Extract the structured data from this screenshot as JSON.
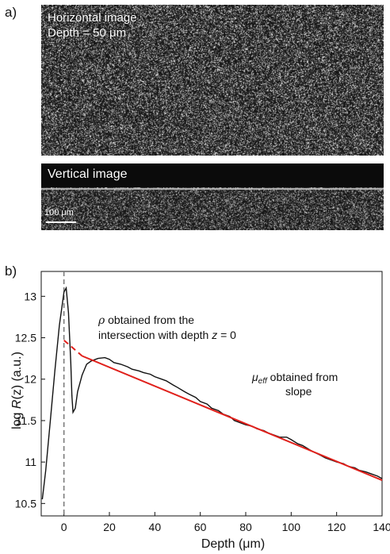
{
  "panel_a": {
    "label": "a)",
    "horizontal_title": "Horizontal image",
    "horizontal_depth": "Depth = 50 μm",
    "vertical_title": "Vertical image",
    "scale_bar_label": "100 μm"
  },
  "panel_b": {
    "label": "b)",
    "annotation_rho": [
      "ρ obtained from the",
      "intersection with depth z = 0"
    ],
    "annotation_mu": [
      "μeff obtained from",
      "slope"
    ]
  },
  "chart_data": {
    "type": "line",
    "xlabel": "Depth (μm)",
    "ylabel": "log R(z) (a.u.)",
    "xlim": [
      -10,
      140
    ],
    "ylim": [
      10.35,
      13.3
    ],
    "xticks": [
      0,
      20,
      40,
      60,
      80,
      100,
      120,
      140
    ],
    "yticks": [
      10.5,
      11,
      11.5,
      12,
      12.5,
      13
    ],
    "series": [
      {
        "color": "#111111",
        "style": "solid",
        "x": [
          -9.5,
          -8,
          -6,
          -4,
          -2,
          0,
          1,
          2,
          3,
          3.5,
          4,
          5,
          6,
          8,
          10,
          12,
          15,
          18,
          20,
          22,
          25,
          28,
          30,
          33,
          35,
          38,
          40,
          43,
          45,
          48,
          50,
          53,
          55,
          58,
          60,
          63,
          65,
          68,
          70,
          73,
          75,
          78,
          80,
          83,
          85,
          88,
          90,
          93,
          95,
          98,
          100,
          103,
          105,
          108,
          110,
          113,
          115,
          118,
          120,
          123,
          125,
          128,
          130,
          133,
          135,
          138,
          140
        ],
        "y": [
          10.55,
          10.9,
          11.5,
          12.1,
          12.65,
          13.05,
          13.1,
          12.8,
          12.2,
          11.8,
          11.6,
          11.65,
          11.85,
          12.05,
          12.18,
          12.22,
          12.25,
          12.26,
          12.24,
          12.2,
          12.18,
          12.15,
          12.12,
          12.1,
          12.08,
          12.06,
          12.03,
          12.0,
          11.98,
          11.93,
          11.9,
          11.85,
          11.82,
          11.78,
          11.73,
          11.7,
          11.65,
          11.62,
          11.58,
          11.55,
          11.5,
          11.47,
          11.45,
          11.43,
          11.4,
          11.38,
          11.35,
          11.32,
          11.3,
          11.3,
          11.27,
          11.22,
          11.2,
          11.15,
          11.12,
          11.08,
          11.05,
          11.02,
          11.0,
          10.98,
          10.95,
          10.93,
          10.9,
          10.88,
          10.86,
          10.83,
          10.8
        ]
      },
      {
        "color": "#e0201b",
        "style": "solid",
        "x": [
          8,
          140
        ],
        "y": [
          12.28,
          10.78
        ]
      },
      {
        "color": "#e0201b",
        "style": "dashed",
        "x": [
          0,
          8
        ],
        "y": [
          12.47,
          12.28
        ]
      }
    ],
    "vline": {
      "x": 0,
      "style": "dashed",
      "color": "#777777"
    }
  }
}
